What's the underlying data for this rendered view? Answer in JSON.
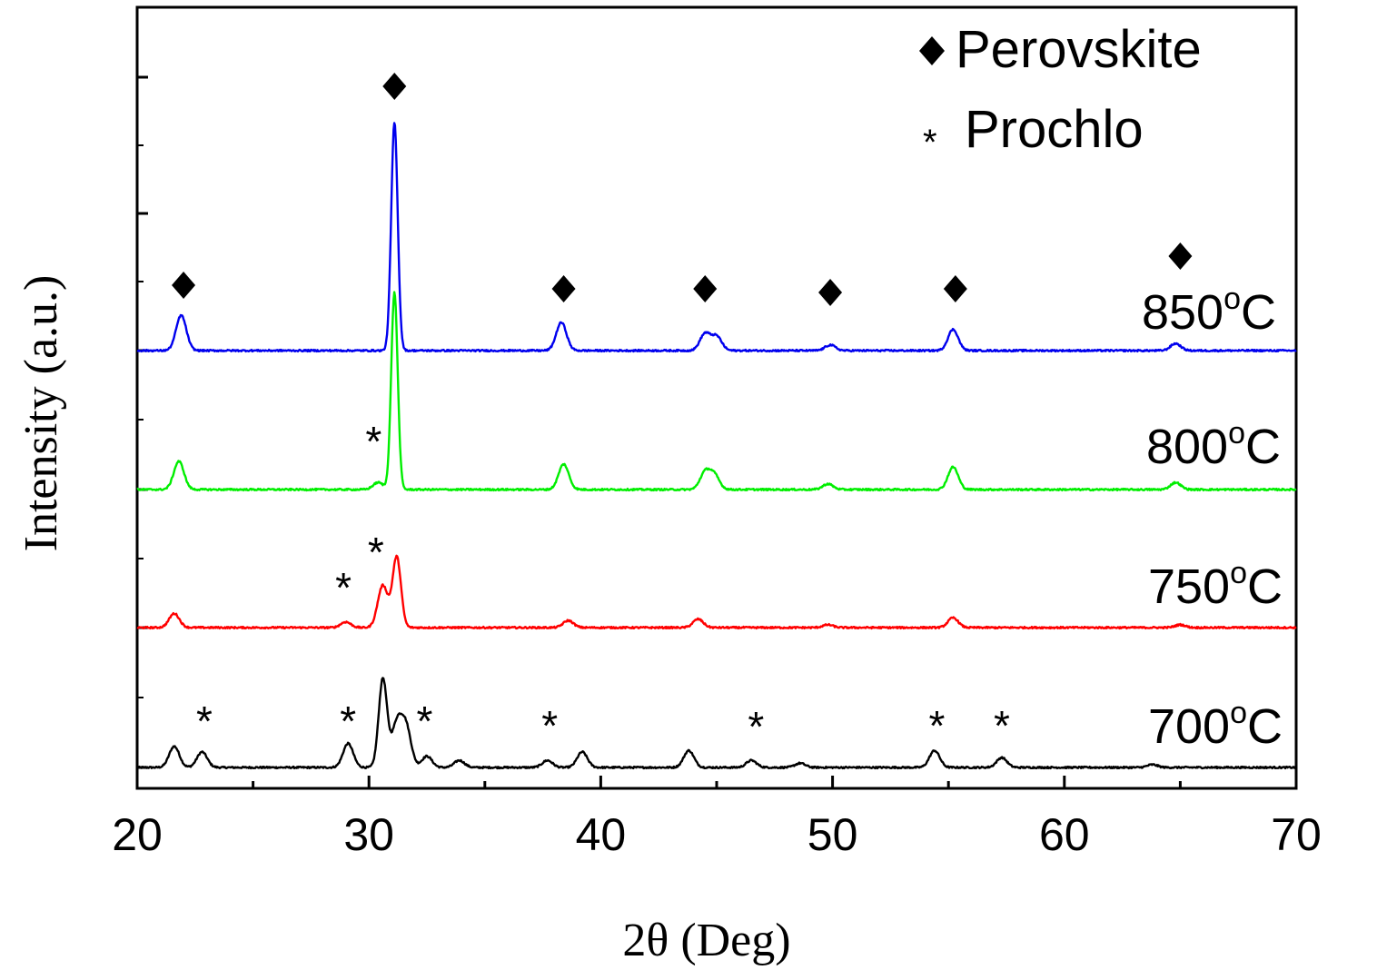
{
  "chart_data": {
    "type": "line",
    "title": "",
    "xlabel": "2θ (Deg)",
    "ylabel": "Intensity (a.u.)",
    "xlim": [
      20,
      70
    ],
    "x_ticks": [
      20,
      30,
      40,
      50,
      60,
      70
    ],
    "x_tick_labels": [
      "20",
      "30",
      "40",
      "50",
      "60",
      "70"
    ],
    "y_ticks_shown": false,
    "grid": false,
    "legend": {
      "position": "top-right",
      "entries": [
        {
          "symbol": "◆",
          "label": "Perovskite"
        },
        {
          "symbol": "*",
          "label": "Prochlo"
        }
      ]
    },
    "series": [
      {
        "name": "700°C",
        "color": "#000000",
        "peaks": [
          {
            "x": 21.6,
            "height": 0.15
          },
          {
            "x": 22.8,
            "height": 0.11
          },
          {
            "x": 29.1,
            "height": 0.17
          },
          {
            "x": 30.6,
            "height": 0.63
          },
          {
            "x": 31.2,
            "height": 0.3
          },
          {
            "x": 31.6,
            "height": 0.28
          },
          {
            "x": 32.5,
            "height": 0.08
          },
          {
            "x": 33.9,
            "height": 0.05
          },
          {
            "x": 37.7,
            "height": 0.05
          },
          {
            "x": 39.2,
            "height": 0.11
          },
          {
            "x": 43.8,
            "height": 0.12
          },
          {
            "x": 46.5,
            "height": 0.05
          },
          {
            "x": 48.6,
            "height": 0.03
          },
          {
            "x": 54.4,
            "height": 0.12
          },
          {
            "x": 57.3,
            "height": 0.07
          },
          {
            "x": 63.8,
            "height": 0.02
          }
        ]
      },
      {
        "name": "750°C",
        "color": "#ff0000",
        "peaks": [
          {
            "x": 21.6,
            "height": 0.1
          },
          {
            "x": 29.0,
            "height": 0.04
          },
          {
            "x": 30.6,
            "height": 0.3
          },
          {
            "x": 31.2,
            "height": 0.5
          },
          {
            "x": 38.6,
            "height": 0.05
          },
          {
            "x": 44.2,
            "height": 0.06
          },
          {
            "x": 49.8,
            "height": 0.02
          },
          {
            "x": 55.2,
            "height": 0.07
          },
          {
            "x": 65.0,
            "height": 0.02
          }
        ]
      },
      {
        "name": "800°C",
        "color": "#00ee00",
        "peaks": [
          {
            "x": 21.8,
            "height": 0.2
          },
          {
            "x": 30.4,
            "height": 0.05
          },
          {
            "x": 31.1,
            "height": 1.4
          },
          {
            "x": 38.4,
            "height": 0.18
          },
          {
            "x": 44.5,
            "height": 0.12
          },
          {
            "x": 44.9,
            "height": 0.1
          },
          {
            "x": 49.8,
            "height": 0.04
          },
          {
            "x": 55.2,
            "height": 0.16
          },
          {
            "x": 64.8,
            "height": 0.05
          }
        ]
      },
      {
        "name": "850°C",
        "color": "#0000ee",
        "peaks": [
          {
            "x": 21.9,
            "height": 0.25
          },
          {
            "x": 31.1,
            "height": 1.62
          },
          {
            "x": 38.3,
            "height": 0.2
          },
          {
            "x": 44.5,
            "height": 0.12
          },
          {
            "x": 45.0,
            "height": 0.1
          },
          {
            "x": 49.9,
            "height": 0.04
          },
          {
            "x": 55.2,
            "height": 0.15
          },
          {
            "x": 64.8,
            "height": 0.05
          }
        ]
      }
    ],
    "series_labels": [
      "700°C",
      "750°C",
      "800°C",
      "850°C"
    ],
    "annotations": {
      "perovskite_markers_x": [
        22.0,
        31.1,
        38.4,
        44.5,
        49.9,
        55.3,
        65.0
      ],
      "prochlo_markers": [
        {
          "series": "700°C",
          "x": [
            22.9,
            29.1,
            32.4,
            37.8,
            46.7,
            54.5,
            57.3
          ]
        },
        {
          "series": "750°C",
          "x": [
            28.9,
            30.3
          ]
        },
        {
          "series": "800°C",
          "x": [
            30.2
          ]
        }
      ]
    }
  }
}
